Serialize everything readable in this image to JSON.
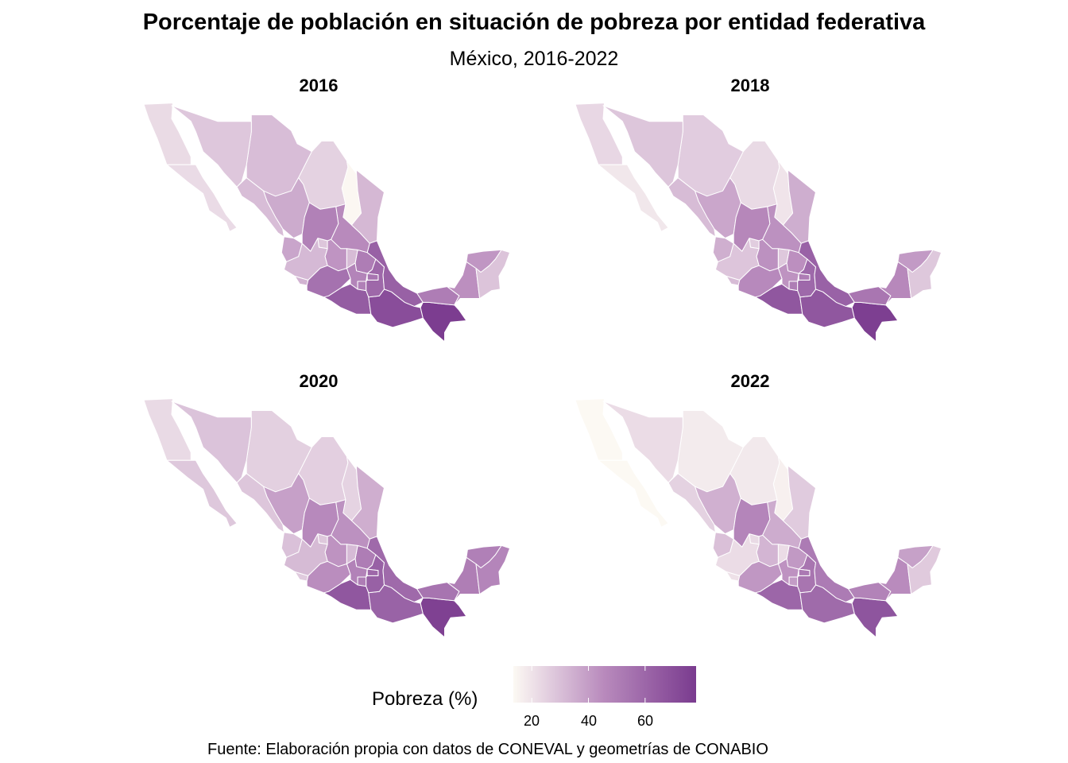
{
  "title": "Porcentaje de población en situación de pobreza por entidad federativa",
  "subtitle": "México, 2016-2022",
  "caption": "Fuente: Elaboración propia con datos de CONEVAL y geometrías de CONABIO",
  "legend": {
    "title": "Pobreza (%)",
    "ticks": [
      "20",
      "40",
      "60"
    ],
    "range": [
      13.5,
      78
    ],
    "colors": [
      "#fcf9f3",
      "#e4d1e1",
      "#b98bbd",
      "#7a3b8f"
    ]
  },
  "chart_data": {
    "type": "choropleth",
    "facets": [
      "2016",
      "2018",
      "2020",
      "2022"
    ],
    "states": {
      "Aguascalientes": [
        28.2,
        26.2,
        27.6,
        22.5
      ],
      "Baja California": [
        22.2,
        23.3,
        22.5,
        13.4
      ],
      "Baja California Sur": [
        22.1,
        18.6,
        27.6,
        13.3
      ],
      "Campeche": [
        43.8,
        46.2,
        50.5,
        45.1
      ],
      "Coahuila": [
        24.8,
        22.5,
        25.6,
        18.2
      ],
      "Colima": [
        33.6,
        30.9,
        26.7,
        20.4
      ],
      "Chiapas": [
        77.1,
        76.4,
        75.5,
        67.4
      ],
      "Chihuahua": [
        30.6,
        26.3,
        25.3,
        17.6
      ],
      "Ciudad de México": [
        27.6,
        30.6,
        32.6,
        24.0
      ],
      "Durango": [
        36.0,
        37.3,
        38.9,
        34.3
      ],
      "Guanajuato": [
        42.4,
        43.4,
        42.7,
        33.0
      ],
      "Guerrero": [
        64.4,
        66.5,
        66.4,
        60.4
      ],
      "Hidalgo": [
        50.6,
        43.8,
        50.8,
        41.1
      ],
      "Jalisco": [
        31.8,
        28.4,
        31.4,
        21.8
      ],
      "México": [
        47.9,
        42.7,
        48.9,
        42.9
      ],
      "Michoacán": [
        55.3,
        46.0,
        44.5,
        41.7
      ],
      "Morelos": [
        49.5,
        50.8,
        50.9,
        40.2
      ],
      "Nayarit": [
        37.5,
        34.8,
        29.7,
        29.8
      ],
      "Nuevo León": [
        14.2,
        19.4,
        24.3,
        16.0
      ],
      "Oaxaca": [
        70.4,
        66.4,
        61.7,
        58.4
      ],
      "Puebla": [
        59.4,
        58.9,
        62.4,
        54.0
      ],
      "Querétaro": [
        31.1,
        27.6,
        31.3,
        21.7
      ],
      "Quintana Roo": [
        28.8,
        27.6,
        47.5,
        27.0
      ],
      "San Luis Potosí": [
        45.5,
        43.4,
        43.4,
        35.5
      ],
      "Sinaloa": [
        30.8,
        30.9,
        28.1,
        24.8
      ],
      "Sonora": [
        27.9,
        28.2,
        29.0,
        21.7
      ],
      "Tabasco": [
        50.9,
        53.6,
        54.5,
        48.5
      ],
      "Tamaulipas": [
        32.2,
        35.1,
        35.0,
        26.8
      ],
      "Tlaxcala": [
        53.9,
        51.0,
        59.3,
        52.5
      ],
      "Veracruz": [
        62.2,
        61.8,
        58.6,
        51.7
      ],
      "Yucatán": [
        41.9,
        40.8,
        49.5,
        38.8
      ],
      "Zacatecas": [
        49.0,
        46.8,
        45.8,
        47.5
      ]
    }
  }
}
